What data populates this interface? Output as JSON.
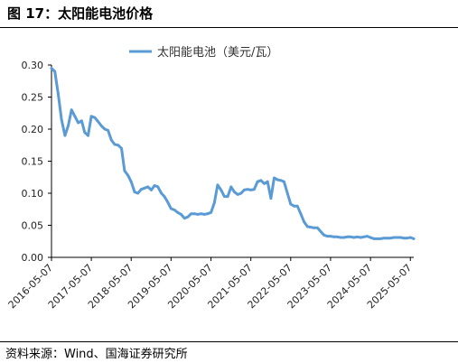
{
  "figure": {
    "title": "图 17：太阳能电池价格",
    "source": "资料来源：Wind、国海证券研究所"
  },
  "colors": {
    "series": "#5B9BD5",
    "axis": "#000000",
    "text": "#222222"
  },
  "chart_data": {
    "type": "line",
    "title": "",
    "xlabel": "",
    "ylabel": "",
    "ylim": [
      0.0,
      0.3
    ],
    "y_ticks": [
      "0.00",
      "0.05",
      "0.10",
      "0.15",
      "0.20",
      "0.25",
      "0.30"
    ],
    "x_tick_labels": [
      "2016-05-07",
      "2017-05-07",
      "2018-05-07",
      "2019-05-07",
      "2020-05-07",
      "2021-05-07",
      "2022-05-07",
      "2023-05-07",
      "2024-05-07",
      "2025-05-07"
    ],
    "grid": false,
    "legend_position": "top",
    "series": [
      {
        "name": "太阳能电池（美元/瓦）",
        "x": [
          "2016-05-07",
          "2016-06-07",
          "2016-07-07",
          "2016-08-07",
          "2016-09-07",
          "2016-10-07",
          "2016-11-07",
          "2016-12-07",
          "2017-01-07",
          "2017-02-07",
          "2017-03-07",
          "2017-04-07",
          "2017-05-07",
          "2017-06-07",
          "2017-07-07",
          "2017-08-07",
          "2017-09-07",
          "2017-10-07",
          "2017-11-07",
          "2017-12-07",
          "2018-01-07",
          "2018-02-07",
          "2018-03-07",
          "2018-04-07",
          "2018-05-07",
          "2018-06-07",
          "2018-07-07",
          "2018-08-07",
          "2018-09-07",
          "2018-10-07",
          "2018-11-07",
          "2018-12-07",
          "2019-01-07",
          "2019-02-07",
          "2019-03-07",
          "2019-04-07",
          "2019-05-07",
          "2019-06-07",
          "2019-07-07",
          "2019-08-07",
          "2019-09-07",
          "2019-10-07",
          "2019-11-07",
          "2019-12-07",
          "2020-01-07",
          "2020-02-07",
          "2020-03-07",
          "2020-04-07",
          "2020-05-07",
          "2020-06-07",
          "2020-07-07",
          "2020-08-07",
          "2020-09-07",
          "2020-10-07",
          "2020-11-07",
          "2020-12-07",
          "2021-01-07",
          "2021-02-07",
          "2021-03-07",
          "2021-04-07",
          "2021-05-07",
          "2021-06-07",
          "2021-07-07",
          "2021-08-07",
          "2021-09-07",
          "2021-10-07",
          "2021-11-07",
          "2021-12-07",
          "2022-01-07",
          "2022-02-07",
          "2022-03-07",
          "2022-04-07",
          "2022-05-07",
          "2022-06-07",
          "2022-07-07",
          "2022-08-07",
          "2022-09-07",
          "2022-10-07",
          "2022-11-07",
          "2022-12-07",
          "2023-01-07",
          "2023-02-07",
          "2023-03-07",
          "2023-04-07",
          "2023-05-07",
          "2023-06-07",
          "2023-07-07",
          "2023-08-07",
          "2023-09-07",
          "2023-10-07",
          "2023-11-07",
          "2023-12-07",
          "2024-01-07",
          "2024-02-07",
          "2024-03-07",
          "2024-04-07",
          "2024-05-07",
          "2024-06-07",
          "2024-07-07",
          "2024-08-07",
          "2024-09-07",
          "2024-10-07",
          "2024-11-07",
          "2024-12-07",
          "2025-01-07",
          "2025-02-07",
          "2025-03-07",
          "2025-04-07",
          "2025-05-07",
          "2025-06-07"
        ],
        "y": [
          0.295,
          0.29,
          0.255,
          0.215,
          0.19,
          0.205,
          0.23,
          0.22,
          0.21,
          0.213,
          0.195,
          0.19,
          0.22,
          0.218,
          0.212,
          0.205,
          0.2,
          0.198,
          0.183,
          0.176,
          0.175,
          0.17,
          0.135,
          0.128,
          0.118,
          0.102,
          0.1,
          0.106,
          0.108,
          0.11,
          0.105,
          0.112,
          0.11,
          0.1,
          0.095,
          0.086,
          0.076,
          0.074,
          0.07,
          0.067,
          0.061,
          0.063,
          0.068,
          0.068,
          0.067,
          0.068,
          0.067,
          0.068,
          0.07,
          0.085,
          0.113,
          0.105,
          0.095,
          0.095,
          0.11,
          0.102,
          0.098,
          0.1,
          0.105,
          0.106,
          0.105,
          0.106,
          0.118,
          0.12,
          0.115,
          0.118,
          0.092,
          0.124,
          0.121,
          0.12,
          0.118,
          0.1,
          0.083,
          0.08,
          0.08,
          0.068,
          0.055,
          0.048,
          0.047,
          0.046,
          0.046,
          0.04,
          0.035,
          0.033,
          0.033,
          0.032,
          0.032,
          0.031,
          0.031,
          0.032,
          0.032,
          0.031,
          0.032,
          0.031,
          0.032,
          0.033,
          0.031,
          0.029,
          0.029,
          0.029,
          0.03,
          0.03,
          0.03,
          0.031,
          0.031,
          0.031,
          0.03,
          0.03,
          0.031,
          0.029
        ]
      }
    ]
  }
}
